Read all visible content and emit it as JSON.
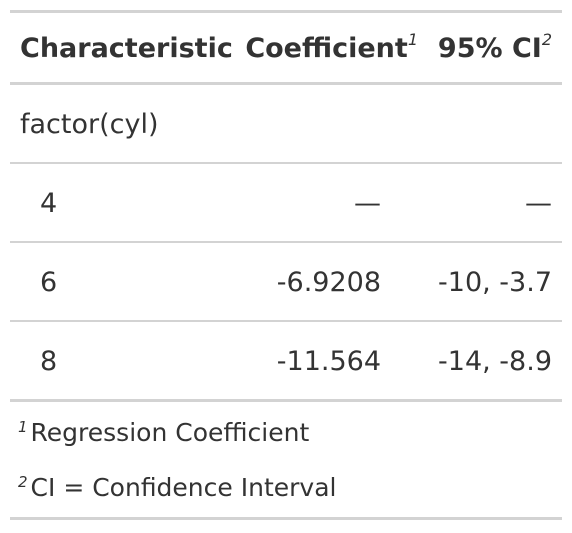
{
  "table": {
    "headers": {
      "characteristic": "Characteristic",
      "coefficient": "Coefficient",
      "coefficient_note": "1",
      "ci": "95% CI",
      "ci_note": "2"
    },
    "group_label": "factor(cyl)",
    "rows": [
      {
        "level": "4",
        "coefficient": "—",
        "ci": "—"
      },
      {
        "level": "6",
        "coefficient": "-6.9208",
        "ci": "-10, -3.7"
      },
      {
        "level": "8",
        "coefficient": "-11.564",
        "ci": "-14, -8.9"
      }
    ]
  },
  "footnotes": [
    {
      "marker": "1",
      "text": "Regression Coefficient"
    },
    {
      "marker": "2",
      "text": "CI = Confidence Interval"
    }
  ],
  "colors": {
    "text": "#333333",
    "rule": "#d3d3d3",
    "background": "#ffffff"
  }
}
